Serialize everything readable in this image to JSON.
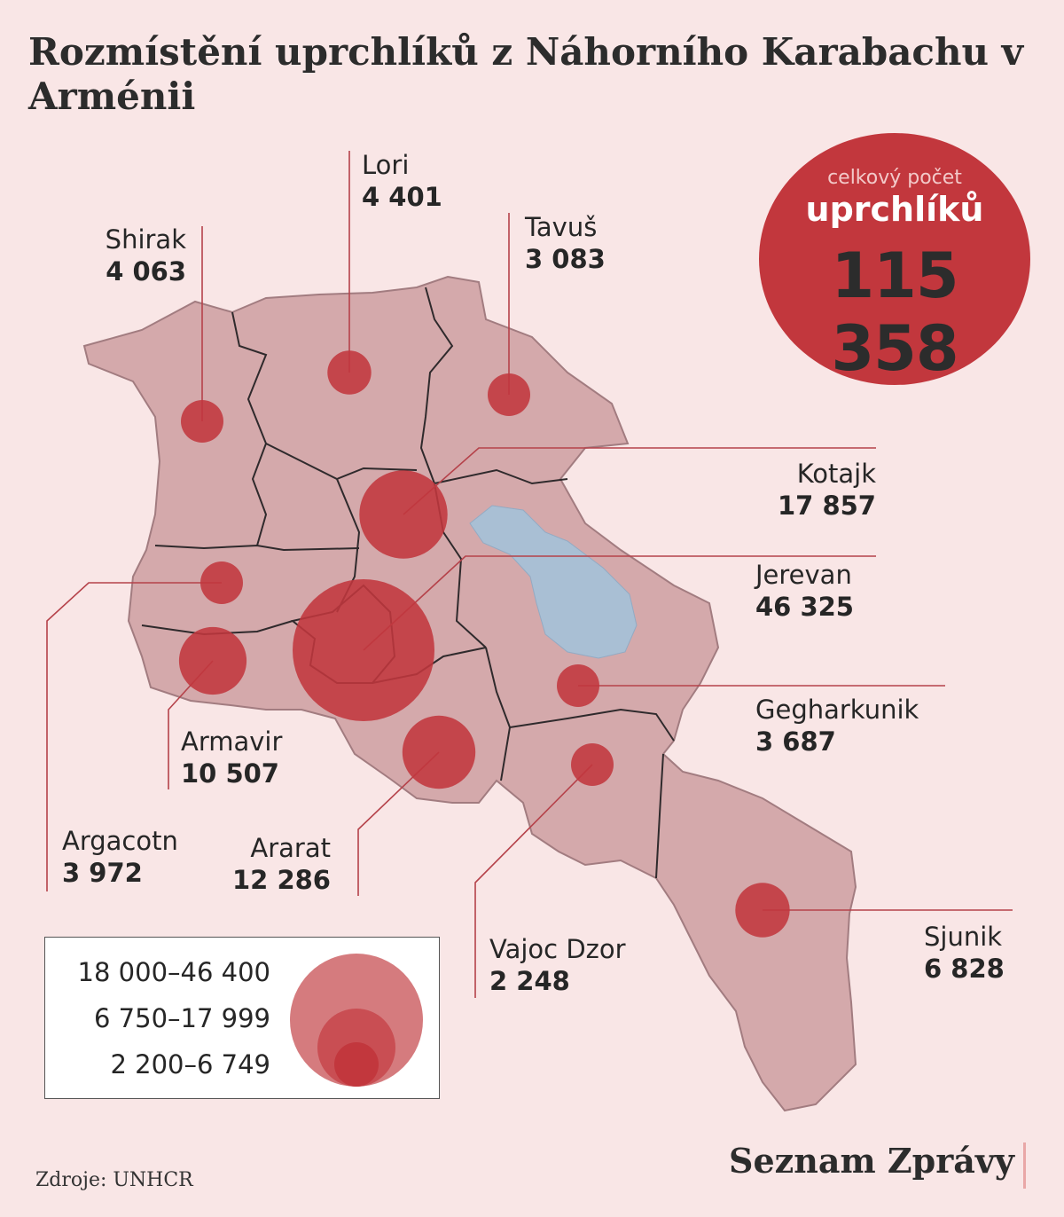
{
  "title": "Rozmístění uprchlíků z Náhorního Karabachu v Arménii",
  "colors": {
    "background": "#f9e6e6",
    "circle": "#c2373d",
    "land": "#d4a9ab",
    "lake": "#a9bfd4",
    "leader": "#b5424a"
  },
  "total": {
    "line1": "celkový počet",
    "line2": "uprchlíků",
    "value": "115 358"
  },
  "regions": [
    {
      "name": "Shirak",
      "value": "4 063",
      "count": 4063
    },
    {
      "name": "Lori",
      "value": "4 401",
      "count": 4401
    },
    {
      "name": "Tavuš",
      "value": "3 083",
      "count": 3083
    },
    {
      "name": "Kotajk",
      "value": "17 857",
      "count": 17857
    },
    {
      "name": "Jerevan",
      "value": "46 325",
      "count": 46325
    },
    {
      "name": "Gegharkunik",
      "value": "3 687",
      "count": 3687
    },
    {
      "name": "Armavir",
      "value": "10 507",
      "count": 10507
    },
    {
      "name": "Argacotn",
      "value": "3 972",
      "count": 3972
    },
    {
      "name": "Ararat",
      "value": "12 286",
      "count": 12286
    },
    {
      "name": "Vajoc Dzor",
      "value": "2 248",
      "count": 2248
    },
    {
      "name": "Sjunik",
      "value": "6 828",
      "count": 6828
    }
  ],
  "legend": [
    {
      "label": "18 000–46 400"
    },
    {
      "label": "6 750–17 999"
    },
    {
      "label": "2 200–6 749"
    }
  ],
  "source": "Zdroje: UNHCR",
  "brand": "Seznam Zprávy"
}
